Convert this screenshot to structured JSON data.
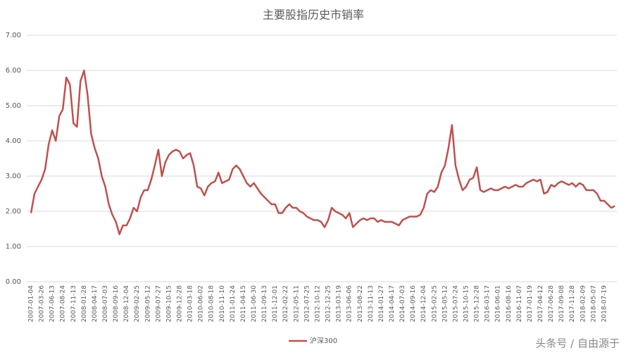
{
  "chart_data": {
    "type": "line",
    "title": "主要股指历史市销率",
    "watermark": "头条号 / 自由源于",
    "categories": [
      "2007-01-04",
      null,
      null,
      "2007-03-26",
      null,
      null,
      "2007-06-13",
      null,
      null,
      "2007-08-24",
      null,
      null,
      "2007-11-13",
      null,
      null,
      "2008-01-28",
      null,
      null,
      "2008-04-17",
      null,
      null,
      "2008-07-03",
      null,
      null,
      "2008-09-16",
      null,
      null,
      "2008-12-04",
      null,
      null,
      "2009-02-25",
      null,
      null,
      "2009-05-12",
      null,
      null,
      "2009-07-27",
      null,
      null,
      "2009-10-15",
      null,
      null,
      "2009-12-28",
      null,
      null,
      "2010-03-18",
      null,
      null,
      "2010-06-02",
      null,
      null,
      "2010-08-18",
      null,
      null,
      "2010-11-10",
      null,
      null,
      "2011-01-24",
      null,
      null,
      "2011-04-15",
      null,
      null,
      "2011-06-30",
      null,
      null,
      "2011-09-13",
      null,
      null,
      "2011-12-01",
      null,
      null,
      "2012-02-22",
      null,
      null,
      "2012-05-11",
      null,
      null,
      "2012-07-25",
      null,
      null,
      "2012-10-12",
      null,
      null,
      "2012-12-25",
      null,
      null,
      "2013-03-19",
      null,
      null,
      "2013-06-06",
      null,
      null,
      "2013-08-22",
      null,
      null,
      "2013-11-13",
      null,
      null,
      "2014-01-27",
      null,
      null,
      "2014-04-17",
      null,
      null,
      "2014-07-03",
      null,
      null,
      "2014-09-16",
      null,
      null,
      "2014-12-04",
      null,
      null,
      "2015-02-25",
      null,
      null,
      "2015-05-12",
      null,
      null,
      "2015-07-24",
      null,
      null,
      "2015-10-15",
      null,
      null,
      "2015-12-28",
      null,
      null,
      "2016-03-17",
      null,
      null,
      "2016-06-01",
      null,
      null,
      "2016-08-16",
      null,
      null,
      "2016-11-07",
      null,
      null,
      "2017-01-19",
      null,
      null,
      "2017-04-12",
      null,
      null,
      "2017-06-28",
      null,
      null,
      "2017-09-08",
      null,
      null,
      "2017-11-28",
      null,
      null,
      "2018-02-09",
      null,
      null,
      "2018-05-07",
      null,
      null,
      "2018-07-19",
      null,
      null,
      null
    ],
    "series": [
      {
        "name": "沪深300",
        "color": "#c0504d",
        "values": [
          1.95,
          2.5,
          2.7,
          2.9,
          3.2,
          3.9,
          4.3,
          4.0,
          4.7,
          4.9,
          5.8,
          5.6,
          4.5,
          4.4,
          5.7,
          6.0,
          5.3,
          4.2,
          3.8,
          3.5,
          3.0,
          2.7,
          2.2,
          1.9,
          1.7,
          1.35,
          1.6,
          1.6,
          1.8,
          2.1,
          2.0,
          2.4,
          2.6,
          2.6,
          2.9,
          3.3,
          3.75,
          3.0,
          3.4,
          3.6,
          3.7,
          3.75,
          3.7,
          3.5,
          3.6,
          3.65,
          3.3,
          2.7,
          2.65,
          2.45,
          2.7,
          2.8,
          2.85,
          3.1,
          2.8,
          2.85,
          2.9,
          3.2,
          3.3,
          3.2,
          3.0,
          2.8,
          2.7,
          2.8,
          2.65,
          2.5,
          2.4,
          2.3,
          2.2,
          2.2,
          1.95,
          1.95,
          2.1,
          2.2,
          2.1,
          2.1,
          2.0,
          1.95,
          1.85,
          1.8,
          1.75,
          1.75,
          1.7,
          1.55,
          1.75,
          2.1,
          2.0,
          1.95,
          1.9,
          1.8,
          1.95,
          1.55,
          1.65,
          1.75,
          1.8,
          1.75,
          1.8,
          1.8,
          1.7,
          1.75,
          1.7,
          1.7,
          1.7,
          1.65,
          1.6,
          1.75,
          1.8,
          1.85,
          1.85,
          1.85,
          1.9,
          2.1,
          2.5,
          2.6,
          2.55,
          2.7,
          3.1,
          3.3,
          3.8,
          4.45,
          3.3,
          2.9,
          2.6,
          2.7,
          2.9,
          2.95,
          3.25,
          2.6,
          2.55,
          2.6,
          2.65,
          2.6,
          2.6,
          2.65,
          2.7,
          2.65,
          2.7,
          2.75,
          2.7,
          2.7,
          2.8,
          2.85,
          2.9,
          2.85,
          2.9,
          2.5,
          2.55,
          2.75,
          2.7,
          2.8,
          2.85,
          2.8,
          2.75,
          2.8,
          2.7,
          2.8,
          2.75,
          2.6,
          2.6,
          2.6,
          2.5,
          2.3,
          2.3,
          2.2,
          2.1,
          2.15
        ]
      }
    ],
    "ylim": [
      0,
      7
    ],
    "yticks": [
      {
        "value": 0,
        "label": "0.00"
      },
      {
        "value": 1,
        "label": "1.00"
      },
      {
        "value": 2,
        "label": "2.00"
      },
      {
        "value": 3,
        "label": "3.00"
      },
      {
        "value": 4,
        "label": "4.00"
      },
      {
        "value": 5,
        "label": "5.00"
      },
      {
        "value": 6,
        "label": "6.00"
      },
      {
        "value": 7,
        "label": "7.00"
      }
    ],
    "grid": true,
    "legend": "bottom"
  }
}
